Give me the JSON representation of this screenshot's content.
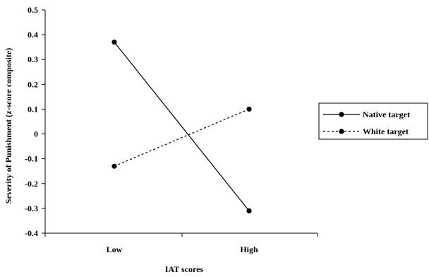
{
  "chart_data": {
    "type": "line",
    "categories": [
      "Low",
      "High"
    ],
    "series": [
      {
        "name": "Native target",
        "values": [
          0.37,
          -0.31
        ],
        "line_style": "solid",
        "color": "#000000"
      },
      {
        "name": "White target",
        "values": [
          -0.13,
          0.1
        ],
        "line_style": "dotted",
        "color": "#000000"
      }
    ],
    "xlabel": "IAT scores",
    "ylabel": "Severity of Punishment (z-score composite)",
    "ylim": [
      -0.4,
      0.5
    ],
    "yticks": [
      "0.5",
      "0.4",
      "0.3",
      "0.2",
      "0.1",
      "0",
      "-0.1",
      "-0.2",
      "-0.3",
      "-0.4"
    ],
    "grid": false,
    "legend_position": "right"
  }
}
